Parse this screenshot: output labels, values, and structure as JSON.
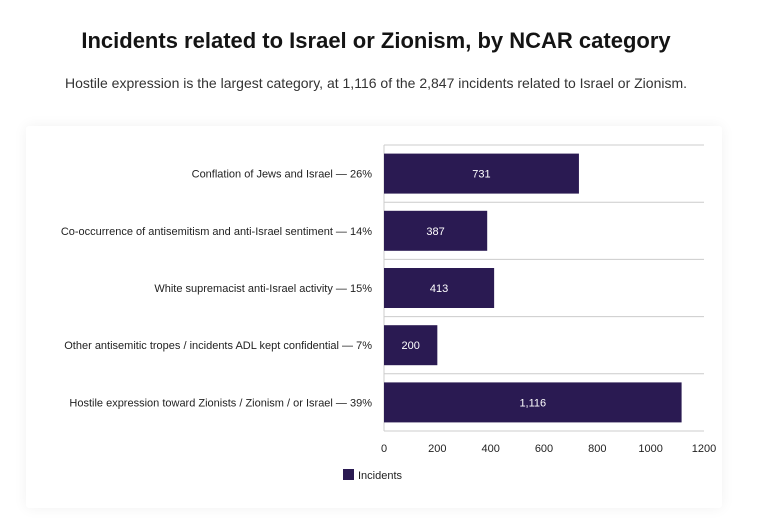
{
  "title": "Incidents related to Israel or Zionism, by NCAR category",
  "subtitle": "Hostile expression is the largest category, at 1,116 of the 2,847 incidents related to Israel or Zionism.",
  "chart_data": {
    "type": "bar",
    "orientation": "horizontal",
    "categories": [
      "Conflation of Jews and Israel — 26%",
      "Co-occurrence of antisemitism and anti-Israel sentiment — 14%",
      "White supremacist anti-Israel activity — 15%",
      "Other antisemitic tropes / incidents ADL kept confidential — 7%",
      "Hostile expression toward Zionists / Zionism / or Israel — 39%"
    ],
    "series": [
      {
        "name": "Incidents",
        "values": [
          731,
          387,
          413,
          200,
          1116
        ],
        "value_labels": [
          "731",
          "387",
          "413",
          "200",
          "1,116"
        ],
        "color": "#2a1a52"
      }
    ],
    "xlim": [
      0,
      1200
    ],
    "x_ticks": [
      "0",
      "200",
      "400",
      "600",
      "800",
      "1000",
      "1200"
    ],
    "grid": "horizontal-lines",
    "legend_position": "bottom-left"
  },
  "colors": {
    "bar": "#2a1a52",
    "grid": "#cccccc",
    "label_text": "#222222"
  }
}
